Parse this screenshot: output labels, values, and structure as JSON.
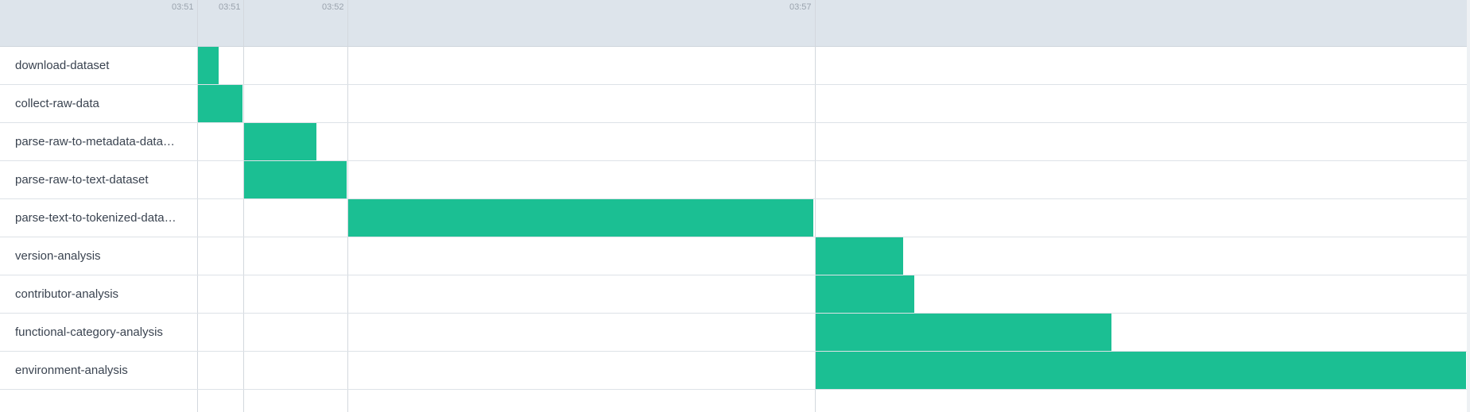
{
  "timeline": {
    "ticks": [
      "03:51",
      "03:51",
      "03:52",
      "03:57"
    ],
    "bar_color": "#1bbf93",
    "header_color": "#dde4eb"
  },
  "tasks": [
    {
      "name": "download-dataset",
      "label": "download-dataset"
    },
    {
      "name": "collect-raw-data",
      "label": "collect-raw-data"
    },
    {
      "name": "parse-raw-to-metadata-dataset",
      "label": "parse-raw-to-metadata-data…"
    },
    {
      "name": "parse-raw-to-text-dataset",
      "label": "parse-raw-to-text-dataset"
    },
    {
      "name": "parse-text-to-tokenized-dataset",
      "label": "parse-text-to-tokenized-data…"
    },
    {
      "name": "version-analysis",
      "label": "version-analysis"
    },
    {
      "name": "contributor-analysis",
      "label": "contributor-analysis"
    },
    {
      "name": "functional-category-analysis",
      "label": "functional-category-analysis"
    },
    {
      "name": "environment-analysis",
      "label": "environment-analysis"
    }
  ]
}
